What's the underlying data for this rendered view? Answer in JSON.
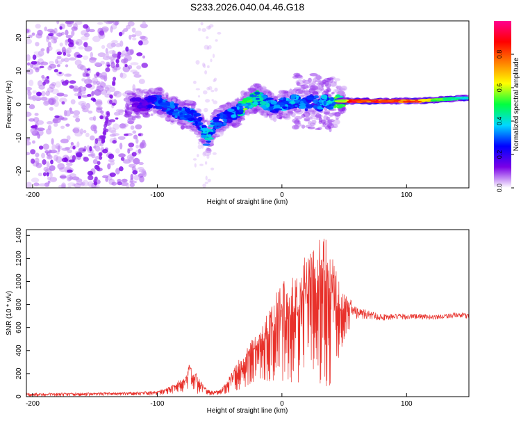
{
  "title": "S233.2026.040.04.46.G18",
  "chart_data": [
    {
      "type": "heatmap",
      "xlabel": "Height of straight line (km)",
      "ylabel": "Frequency (Hz)",
      "xlim": [
        -205,
        150
      ],
      "ylim": [
        -25,
        25
      ],
      "x_ticks": [
        -200,
        -100,
        0,
        100
      ],
      "y_ticks": [
        -20,
        -10,
        0,
        10,
        20
      ],
      "colorbar": {
        "label": "Normalized spectral amplitude",
        "range": [
          0.0,
          1.0
        ],
        "ticks": [
          0.0,
          0.2,
          0.4,
          0.6,
          0.8
        ],
        "tick_labels": [
          "0.0",
          "0.2",
          "0.4",
          "0.6",
          "0.8"
        ],
        "colormap": [
          "#ffffff",
          "#7a00e6",
          "#0000ff",
          "#00d8ff",
          "#00ff40",
          "#ffff00",
          "#ff8000",
          "#ff0000",
          "#ff0090"
        ]
      },
      "ridge": {
        "x": [
          -125,
          -110,
          -100,
          -90,
          -80,
          -75,
          -70,
          -65,
          -60,
          -55,
          -50,
          -45,
          -40,
          -35,
          -30,
          -25,
          -20,
          -15,
          -10,
          -5,
          0,
          5,
          10,
          15,
          20,
          25,
          30,
          35,
          40,
          45,
          55,
          70,
          90,
          110,
          130,
          150
        ],
        "frequency": [
          0,
          0,
          1,
          -1,
          -3,
          -3,
          -4,
          -6,
          -11,
          -6,
          -5,
          -4,
          -3,
          -2,
          0,
          1,
          2,
          1,
          0,
          -1,
          0,
          0,
          1,
          1,
          0,
          1,
          0,
          1,
          0,
          1,
          1,
          1,
          1,
          1,
          1.5,
          2
        ],
        "amplitude": [
          0.15,
          0.2,
          0.3,
          0.35,
          0.35,
          0.4,
          0.3,
          0.35,
          0.5,
          0.35,
          0.3,
          0.3,
          0.35,
          0.4,
          0.6,
          0.5,
          0.5,
          0.45,
          0.4,
          0.35,
          0.4,
          0.35,
          0.4,
          0.35,
          0.3,
          0.3,
          0.35,
          0.4,
          0.45,
          0.55,
          0.95,
          0.9,
          0.85,
          0.8,
          0.5,
          0.45
        ]
      }
    },
    {
      "type": "line",
      "xlabel": "Height of straight line (km)",
      "ylabel": "SNR (10 * v/v)",
      "xlim": [
        -205,
        150
      ],
      "ylim": [
        0,
        1450
      ],
      "x_ticks": [
        -200,
        -100,
        0,
        100
      ],
      "y_ticks": [
        0,
        200,
        400,
        600,
        800,
        1000,
        1200,
        1400
      ],
      "series": [
        {
          "name": "SNR",
          "color": "#e8312b",
          "envelope_x": [
            -205,
            -150,
            -120,
            -100,
            -90,
            -80,
            -75,
            -70,
            -65,
            -60,
            -55,
            -50,
            -45,
            -40,
            -35,
            -30,
            -25,
            -20,
            -15,
            -10,
            -5,
            0,
            5,
            10,
            15,
            20,
            25,
            30,
            35,
            40,
            45,
            50,
            55,
            60,
            70,
            80,
            90,
            100,
            110,
            120,
            130,
            140,
            150
          ],
          "envelope_hi": [
            30,
            35,
            40,
            50,
            90,
            160,
            290,
            220,
            140,
            60,
            50,
            60,
            120,
            220,
            320,
            380,
            480,
            600,
            700,
            760,
            900,
            1020,
            1000,
            1080,
            1150,
            1250,
            1280,
            1380,
            1420,
            1300,
            1080,
            900,
            850,
            780,
            750,
            720,
            720,
            720,
            720,
            710,
            720,
            730,
            720
          ],
          "envelope_lo": [
            0,
            5,
            10,
            10,
            20,
            40,
            30,
            20,
            20,
            10,
            10,
            10,
            20,
            30,
            60,
            80,
            100,
            120,
            150,
            120,
            150,
            100,
            150,
            100,
            100,
            150,
            200,
            120,
            80,
            100,
            300,
            500,
            600,
            600,
            620,
            620,
            630,
            640,
            640,
            640,
            650,
            650,
            650
          ]
        }
      ]
    }
  ]
}
